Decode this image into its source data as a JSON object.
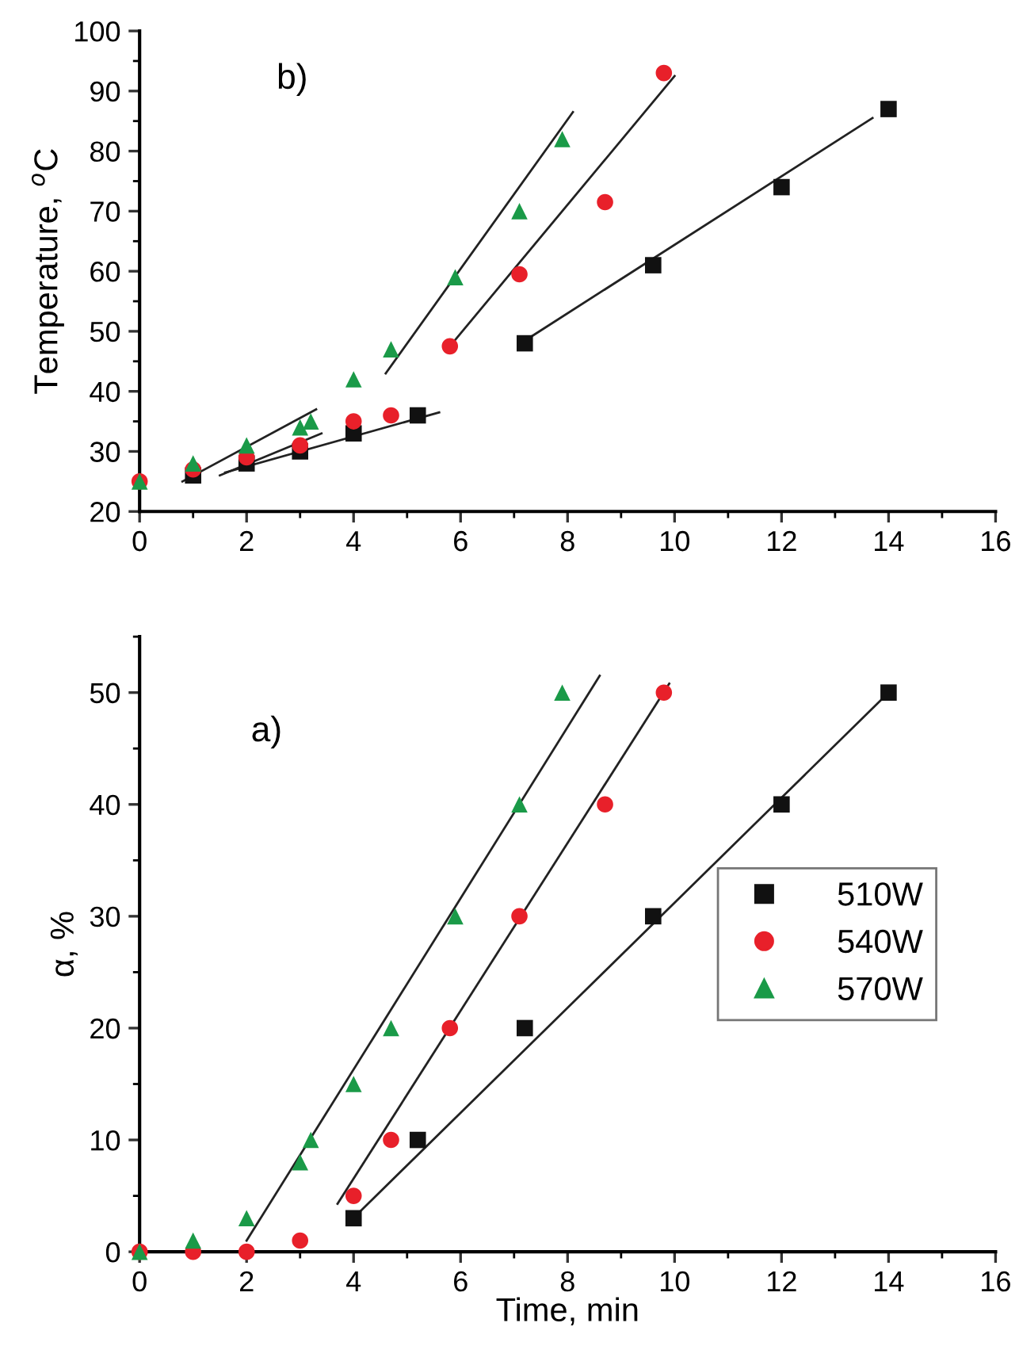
{
  "chart_data": [
    {
      "type": "scatter",
      "ylabel": "Temperature, $^{o}$C",
      "annotations": [
        "b)"
      ],
      "xlim": [
        0,
        16
      ],
      "xticks": [
        0,
        2,
        4,
        6,
        8,
        10,
        12,
        14,
        16
      ],
      "ylim": [
        20,
        100
      ],
      "yticks": [
        20,
        30,
        40,
        50,
        60,
        70,
        80,
        90,
        100
      ],
      "grid": false,
      "legend": false,
      "series": [
        {
          "color": "#111111",
          "marker": "square",
          "x": [
            1,
            2,
            3,
            4,
            5.2,
            7.2,
            9.6,
            12,
            14
          ],
          "values": [
            26,
            28,
            30,
            33,
            36,
            48,
            61,
            74,
            87
          ]
        },
        {
          "color": "#e8202a",
          "marker": "circle",
          "x": [
            0,
            1,
            2,
            3,
            4,
            4.7,
            5.8,
            7.1,
            8.7,
            9.8
          ],
          "values": [
            25,
            27,
            29,
            31,
            35,
            36,
            47.5,
            59.5,
            71.5,
            93
          ]
        },
        {
          "color": "#1a9a48",
          "marker": "triangle",
          "x": [
            0,
            1,
            2,
            3,
            3.2,
            4,
            4.7,
            5.9,
            7.1,
            7.9
          ],
          "values": [
            25,
            28,
            31,
            34,
            35,
            42,
            47,
            59,
            70,
            82
          ]
        },
        {
          "type": "line",
          "color": "#222222",
          "x": [
            1.6,
            5.6
          ],
          "values": [
            26.5,
            36.5
          ]
        },
        {
          "type": "line",
          "color": "#222222",
          "x": [
            1.5,
            3.4
          ],
          "values": [
            26,
            33
          ]
        },
        {
          "type": "line",
          "color": "#222222",
          "x": [
            0.8,
            3.3
          ],
          "values": [
            25,
            37
          ]
        },
        {
          "type": "line",
          "color": "#222222",
          "x": [
            7.3,
            13.7
          ],
          "values": [
            49,
            85.5
          ]
        },
        {
          "type": "line",
          "color": "#222222",
          "x": [
            5.8,
            10
          ],
          "values": [
            47.5,
            92.5
          ]
        },
        {
          "type": "line",
          "color": "#222222",
          "x": [
            4.6,
            8.1
          ],
          "values": [
            43,
            86.5
          ]
        }
      ]
    },
    {
      "type": "scatter",
      "xlabel": "Time, min",
      "ylabel": "α, %",
      "annotations": [
        "a)"
      ],
      "xlim": [
        0,
        16
      ],
      "xticks": [
        0,
        2,
        4,
        6,
        8,
        10,
        12,
        14,
        16
      ],
      "ylim": [
        0,
        55
      ],
      "yticks": [
        0,
        10,
        20,
        30,
        40,
        50
      ],
      "grid": false,
      "legend": "right",
      "series": [
        {
          "name": "510W",
          "color": "#111111",
          "marker": "square",
          "x": [
            4,
            5.2,
            7.2,
            9.6,
            12,
            14
          ],
          "values": [
            3,
            10,
            20,
            30,
            40,
            50
          ]
        },
        {
          "name": "540W",
          "color": "#e8202a",
          "marker": "circle",
          "x": [
            0,
            1,
            2,
            3,
            4,
            4.7,
            5.8,
            7.1,
            8.7,
            9.8
          ],
          "values": [
            0,
            0,
            0,
            1,
            5,
            10,
            20,
            30,
            40,
            50
          ]
        },
        {
          "name": "570W",
          "color": "#1a9a48",
          "marker": "triangle",
          "x": [
            0,
            1,
            2,
            3,
            3.2,
            4,
            4.7,
            5.9,
            7.1,
            7.9
          ],
          "values": [
            0,
            1,
            3,
            8,
            10,
            15,
            20,
            30,
            40,
            50
          ]
        },
        {
          "type": "line",
          "color": "#222222",
          "x": [
            2,
            8.6
          ],
          "values": [
            1,
            51.5
          ]
        },
        {
          "type": "line",
          "color": "#222222",
          "x": [
            3.7,
            9.9
          ],
          "values": [
            4.3,
            50.8
          ]
        },
        {
          "type": "line",
          "color": "#222222",
          "x": [
            4.1,
            14
          ],
          "values": [
            3.5,
            50
          ]
        }
      ]
    }
  ]
}
